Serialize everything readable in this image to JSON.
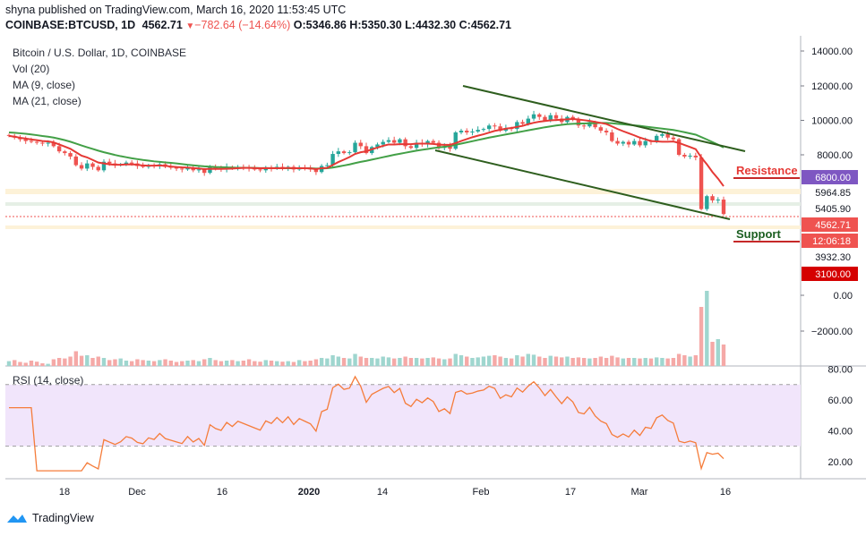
{
  "header": {
    "line1": "shyna published on TradingView.com, March 16, 2020 11:53:45 UTC",
    "symbol": "COINBASE:BTCUSD, 1D",
    "last": "4562.71",
    "change": "−782.64 (−14.64%)",
    "open": "O:5346.86",
    "high": "H:5350.30",
    "low": "L:4432.30",
    "close": "C:4562.71"
  },
  "indicators": {
    "title": "Bitcoin / U.S. Dollar, 1D, COINBASE",
    "vol": "Vol (20)",
    "ma9": "MA (9, close)",
    "ma21": "MA (21, close)",
    "rsi": "RSI (14, close)"
  },
  "annotations": {
    "resistance": "Resistance",
    "support": "Support"
  },
  "footer": {
    "logo_text": "TradingView"
  },
  "colors": {
    "up": "#26a69a",
    "down": "#ef5350",
    "ma9": "#e53935",
    "ma21": "#43a047",
    "trend": "#2e5e1e",
    "rsi": "#f57c3a",
    "rsi_band": "#f1e5fb",
    "resistance_text": "#e53935",
    "support_text": "#1b5e20"
  },
  "chart_data": {
    "type": "candlestick",
    "price_axis_ticks": [
      "14000.00",
      "12000.00",
      "10000.00",
      "8000.00",
      "0.00",
      "−2000.00"
    ],
    "rsi_axis_ticks": [
      "80.00",
      "60.00",
      "40.00",
      "20.00"
    ],
    "x_ticks": [
      "18",
      "Dec",
      "16",
      "2020",
      "14",
      "Feb",
      "17",
      "Mar",
      "16"
    ],
    "price_labels": [
      {
        "text": "6800.00",
        "bg": "#7e57c2",
        "fg": "#ffffff"
      },
      {
        "text": "5964.85",
        "bg": "#ffffff",
        "fg": "#131722"
      },
      {
        "text": "5405.90",
        "bg": "#ffffff",
        "fg": "#131722"
      },
      {
        "text": "4562.71",
        "bg": "#ef5350",
        "fg": "#ffffff"
      },
      {
        "text": "12:06:18",
        "bg": "#ef5350",
        "fg": "#ffffff"
      },
      {
        "text": "3932.30",
        "bg": "#ffffff",
        "fg": "#131722"
      },
      {
        "text": "3100.00",
        "bg": "#d50000",
        "fg": "#ffffff"
      }
    ],
    "close": [
      9100,
      9000,
      8900,
      8800,
      8750,
      8700,
      8650,
      8700,
      8500,
      8200,
      8100,
      7900,
      7400,
      7200,
      7500,
      7300,
      7100,
      7600,
      7500,
      7400,
      7450,
      7550,
      7500,
      7350,
      7300,
      7400,
      7350,
      7450,
      7300,
      7250,
      7200,
      7150,
      7250,
      7100,
      7150,
      6950,
      7300,
      7200,
      7150,
      7300,
      7200,
      7300,
      7250,
      7200,
      7150,
      7100,
      7250,
      7200,
      7300,
      7200,
      7300,
      7150,
      7250,
      7200,
      7150,
      7000,
      7350,
      7400,
      8050,
      8200,
      8100,
      8150,
      8700,
      8500,
      8100,
      8450,
      8600,
      8750,
      8850,
      8700,
      8900,
      8500,
      8400,
      8700,
      8600,
      8800,
      8700,
      8400,
      8500,
      8350,
      9300,
      9400,
      9300,
      9350,
      9450,
      9500,
      9700,
      9650,
      9400,
      9550,
      9500,
      9900,
      9800,
      10100,
      10350,
      10200,
      10000,
      10300,
      10100,
      9900,
      10200,
      10050,
      9700,
      9650,
      9900,
      9600,
      9400,
      9300,
      8800,
      8650,
      8750,
      8600,
      8800,
      8550,
      8800,
      8750,
      9100,
      9200,
      9000,
      8900,
      8000,
      7900,
      7950,
      7850,
      4850,
      5600,
      5350,
      5400,
      4560
    ],
    "ma9": [
      9100,
      9050,
      8990,
      8940,
      8890,
      8850,
      8800,
      8780,
      8720,
      8600,
      8480,
      8350,
      8150,
      7950,
      7850,
      7700,
      7550,
      7500,
      7450,
      7420,
      7420,
      7440,
      7450,
      7420,
      7380,
      7370,
      7370,
      7380,
      7360,
      7320,
      7290,
      7270,
      7260,
      7230,
      7210,
      7170,
      7190,
      7180,
      7180,
      7190,
      7200,
      7220,
      7240,
      7240,
      7230,
      7220,
      7230,
      7220,
      7230,
      7220,
      7240,
      7220,
      7230,
      7220,
      7210,
      7170,
      7220,
      7240,
      7410,
      7580,
      7720,
      7870,
      8050,
      8150,
      8200,
      8320,
      8420,
      8520,
      8600,
      8600,
      8620,
      8620,
      8620,
      8650,
      8650,
      8650,
      8630,
      8590,
      8580,
      8580,
      8680,
      8800,
      8910,
      9020,
      9110,
      9190,
      9290,
      9390,
      9450,
      9520,
      9560,
      9620,
      9680,
      9780,
      9860,
      9920,
      9960,
      10000,
      10020,
      10040,
      10060,
      10080,
      10050,
      10010,
      9970,
      9910,
      9850,
      9790,
      9650,
      9500,
      9370,
      9250,
      9130,
      9000,
      8900,
      8800,
      8780,
      8760,
      8760,
      8770,
      8690,
      8570,
      8450,
      8330,
      7850,
      7450,
      7000,
      6620,
      6180
    ],
    "ma21": [
      9300,
      9280,
      9250,
      9220,
      9180,
      9140,
      9090,
      9050,
      9000,
      8930,
      8850,
      8760,
      8650,
      8540,
      8440,
      8340,
      8240,
      8150,
      8070,
      7990,
      7920,
      7860,
      7800,
      7750,
      7700,
      7660,
      7620,
      7590,
      7560,
      7530,
      7500,
      7460,
      7420,
      7390,
      7360,
      7330,
      7310,
      7290,
      7280,
      7270,
      7260,
      7250,
      7250,
      7250,
      7240,
      7230,
      7230,
      7230,
      7230,
      7220,
      7220,
      7220,
      7220,
      7220,
      7220,
      7200,
      7210,
      7220,
      7260,
      7320,
      7380,
      7440,
      7520,
      7590,
      7650,
      7720,
      7790,
      7860,
      7930,
      8000,
      8060,
      8120,
      8180,
      8240,
      8290,
      8340,
      8390,
      8430,
      8470,
      8510,
      8580,
      8650,
      8720,
      8790,
      8860,
      8930,
      9000,
      9060,
      9120,
      9180,
      9240,
      9300,
      9360,
      9420,
      9480,
      9540,
      9600,
      9650,
      9700,
      9740,
      9780,
      9800,
      9810,
      9820,
      9830,
      9840,
      9850,
      9850,
      9830,
      9800,
      9770,
      9740,
      9710,
      9680,
      9640,
      9600,
      9560,
      9520,
      9480,
      9440,
      9380,
      9310,
      9240,
      9170,
      9030,
      8890,
      8740,
      8590,
      8420
    ],
    "volume": [
      0.18,
      0.22,
      0.15,
      0.12,
      0.2,
      0.16,
      0.1,
      0.08,
      0.25,
      0.3,
      0.28,
      0.35,
      0.55,
      0.38,
      0.4,
      0.3,
      0.35,
      0.3,
      0.22,
      0.25,
      0.28,
      0.2,
      0.18,
      0.25,
      0.22,
      0.2,
      0.18,
      0.22,
      0.25,
      0.2,
      0.15,
      0.18,
      0.2,
      0.22,
      0.18,
      0.25,
      0.3,
      0.22,
      0.18,
      0.2,
      0.22,
      0.18,
      0.2,
      0.25,
      0.18,
      0.16,
      0.22,
      0.2,
      0.18,
      0.16,
      0.18,
      0.15,
      0.22,
      0.18,
      0.2,
      0.25,
      0.3,
      0.28,
      0.4,
      0.35,
      0.3,
      0.28,
      0.45,
      0.35,
      0.3,
      0.3,
      0.28,
      0.35,
      0.32,
      0.28,
      0.3,
      0.35,
      0.3,
      0.3,
      0.28,
      0.3,
      0.32,
      0.28,
      0.25,
      0.28,
      0.45,
      0.4,
      0.35,
      0.3,
      0.32,
      0.35,
      0.38,
      0.4,
      0.35,
      0.3,
      0.28,
      0.4,
      0.35,
      0.45,
      0.42,
      0.35,
      0.3,
      0.38,
      0.35,
      0.32,
      0.35,
      0.3,
      0.32,
      0.3,
      0.28,
      0.3,
      0.35,
      0.3,
      0.38,
      0.32,
      0.28,
      0.3,
      0.3,
      0.28,
      0.3,
      0.28,
      0.32,
      0.3,
      0.28,
      0.3,
      0.45,
      0.4,
      0.35,
      0.4,
      2.2,
      2.8,
      0.9,
      1.0,
      0.8
    ]
  }
}
